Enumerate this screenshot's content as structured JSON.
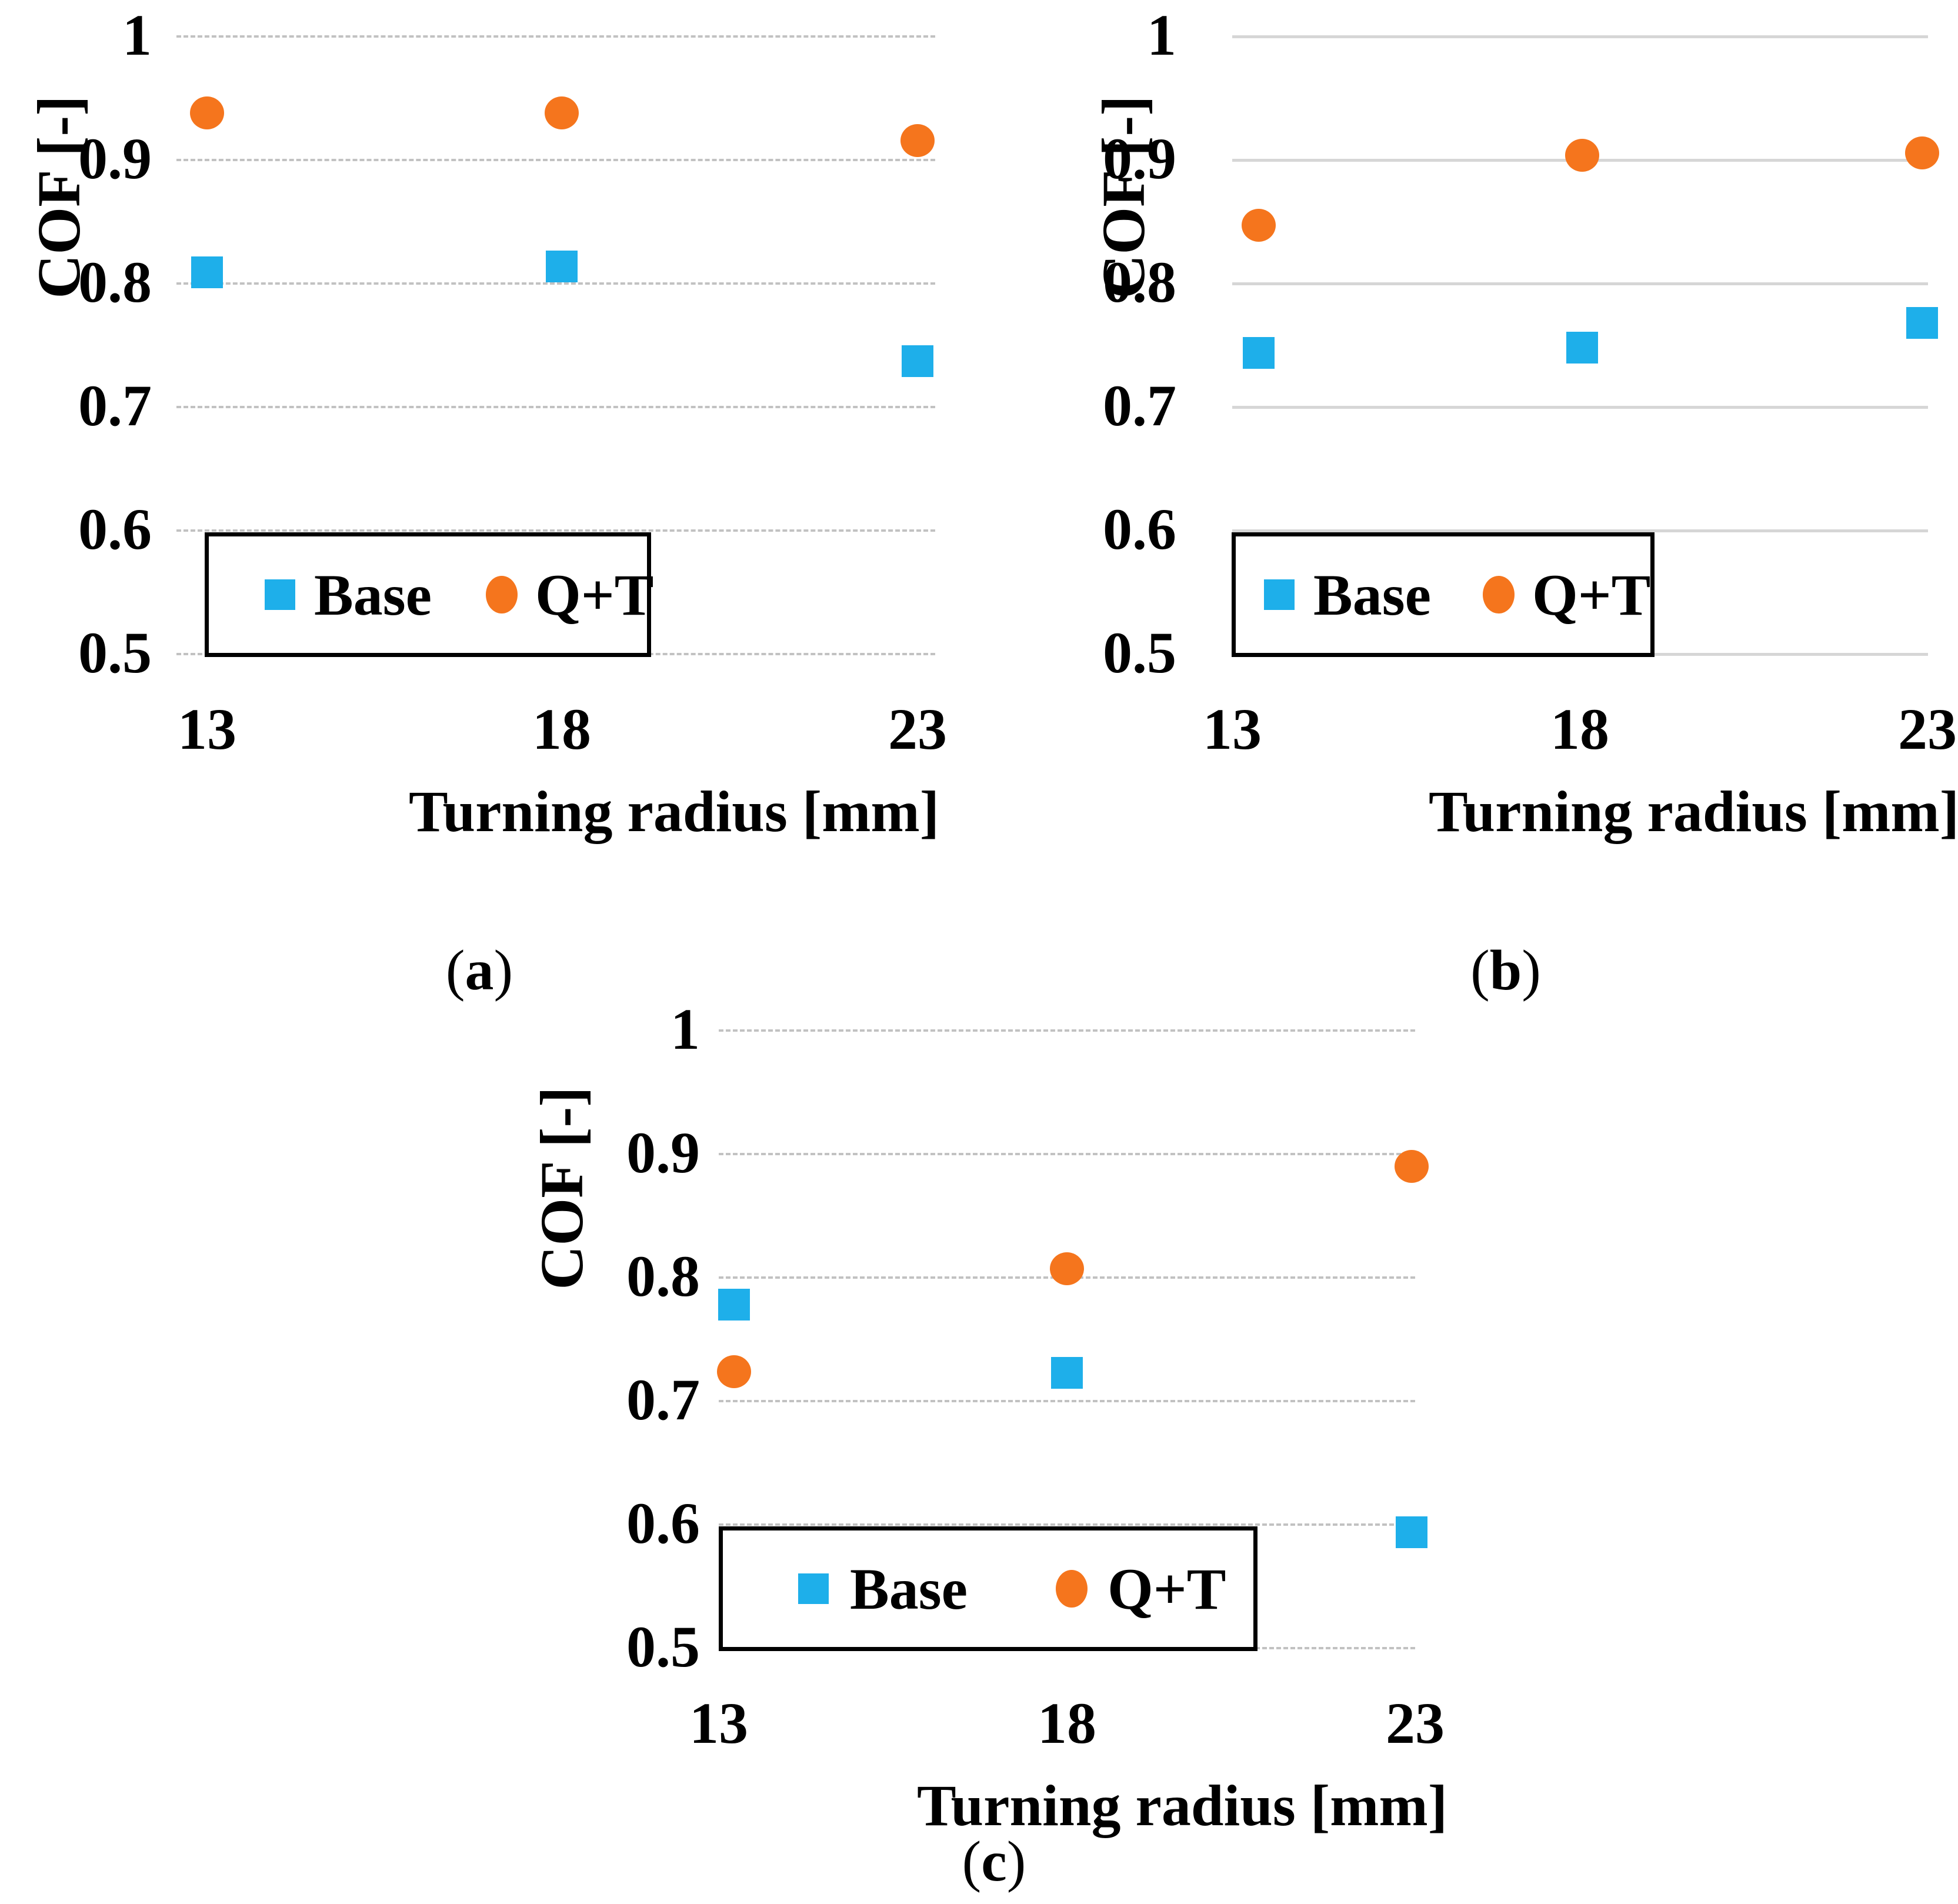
{
  "caption_open": "(",
  "caption_close": ")",
  "colors": {
    "base_blue": "#1EAFEA",
    "qt_orange": "#F5751D",
    "grid_dashed": "#C2C2C2",
    "grid_solid": "#D6D6D6",
    "text": "#000000"
  },
  "chart_data": [
    {
      "id": "a",
      "type": "scatter",
      "caption": "a",
      "xlabel": "Turning radius [mm]",
      "ylabel": "COF [-]",
      "x": [
        13,
        18,
        23
      ],
      "x_tick_labels": [
        "13",
        "18",
        "23"
      ],
      "y_ticks": [
        1,
        0.9,
        0.8,
        0.7,
        0.6,
        0.5
      ],
      "y_tick_labels": [
        "1",
        "0.9",
        "0.8",
        "0.7",
        "0.6",
        "0.5"
      ],
      "xlim": [
        13,
        23
      ],
      "ylim": [
        0.5,
        1.0
      ],
      "grid": "dashed horizontal gridlines",
      "legend_position": "bottom-left inside plot, black box",
      "series": [
        {
          "name": "Base",
          "marker": "square",
          "color": "#1EAFEA",
          "values": [
            0.808,
            0.813,
            0.736
          ]
        },
        {
          "name": "Q+T",
          "marker": "circle",
          "color": "#F5751D",
          "values": [
            0.937,
            0.937,
            0.915
          ]
        }
      ]
    },
    {
      "id": "b",
      "type": "scatter",
      "caption": "b",
      "xlabel": "Turning radius [mm]",
      "ylabel": "COF [-]",
      "x": [
        13,
        18,
        23
      ],
      "x_tick_labels": [
        "13",
        "18",
        "23"
      ],
      "y_ticks": [
        1,
        0.9,
        0.8,
        0.7,
        0.6,
        0.5
      ],
      "y_tick_labels": [
        "1",
        "0.9",
        "0.8",
        "0.7",
        "0.6",
        "0.5"
      ],
      "xlim": [
        13,
        23
      ],
      "ylim": [
        0.5,
        1.0
      ],
      "grid": "solid horizontal gridlines",
      "legend_position": "bottom-left inside plot, black box",
      "series": [
        {
          "name": "Base",
          "marker": "square",
          "color": "#1EAFEA",
          "values": [
            0.743,
            0.747,
            0.767
          ]
        },
        {
          "name": "Q+T",
          "marker": "circle",
          "color": "#F5751D",
          "values": [
            0.846,
            0.903,
            0.905
          ]
        }
      ]
    },
    {
      "id": "c",
      "type": "scatter",
      "caption": "c",
      "xlabel": "Turning radius [mm]",
      "ylabel": "COF [-]",
      "x": [
        13,
        18,
        23
      ],
      "x_tick_labels": [
        "13",
        "18",
        "23"
      ],
      "y_ticks": [
        1,
        0.9,
        0.8,
        0.7,
        0.6,
        0.5
      ],
      "y_tick_labels": [
        "1",
        "0.9",
        "0.8",
        "0.7",
        "0.6",
        "0.5"
      ],
      "xlim": [
        13,
        23
      ],
      "ylim": [
        0.5,
        1.0
      ],
      "grid": "dashed horizontal gridlines",
      "legend_position": "bottom-center inside plot, black box",
      "series": [
        {
          "name": "Base",
          "marker": "square",
          "color": "#1EAFEA",
          "values": [
            0.777,
            0.722,
            0.593
          ]
        },
        {
          "name": "Q+T",
          "marker": "circle",
          "color": "#F5751D",
          "values": [
            0.723,
            0.806,
            0.889
          ]
        }
      ]
    }
  ]
}
